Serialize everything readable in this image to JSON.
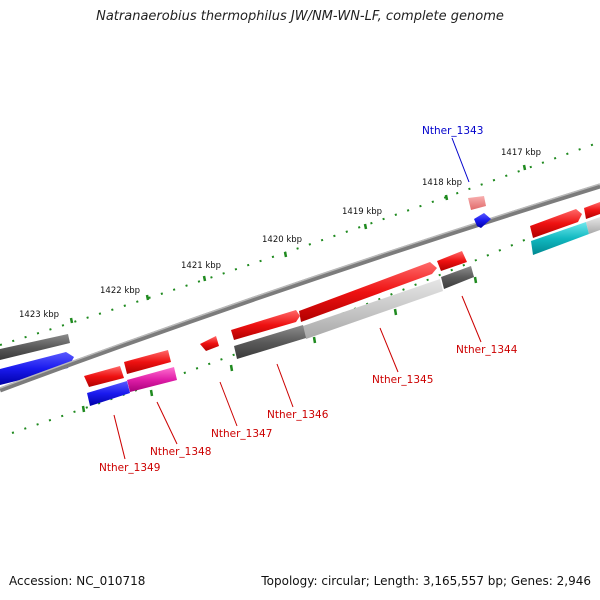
{
  "title": "Natranaerobius thermophilus JW/NM-WN-LF, complete genome",
  "accession_label": "Accession: NC_010718",
  "summary_label": "Topology: circular; Length: 3,165,557 bp; Genes: 2,946",
  "ruler_labels": [
    "1423 kbp",
    "1422 kbp",
    "1421 kbp",
    "1420 kbp",
    "1419 kbp",
    "1418 kbp",
    "1417 kbp"
  ],
  "gene_labels": [
    "Nther_1343",
    "Nther_1344",
    "Nther_1345",
    "Nther_1346",
    "Nther_1347",
    "Nther_1348",
    "Nther_1349"
  ],
  "colors": {
    "backbone": "#8a8a8a",
    "ticks": "#1f8a1f",
    "gene_label": "#cc0000",
    "gene_label_selected": "#0000cc",
    "cds_red": "#ee1111",
    "cds_light_red": "#f08080",
    "cds_blue": "#1a1aee",
    "cds_magenta": "#e01ea8",
    "cds_cyan": "#11b8c0",
    "feature_dark": "#5a5a5a",
    "feature_light": "#c8c8c8"
  }
}
